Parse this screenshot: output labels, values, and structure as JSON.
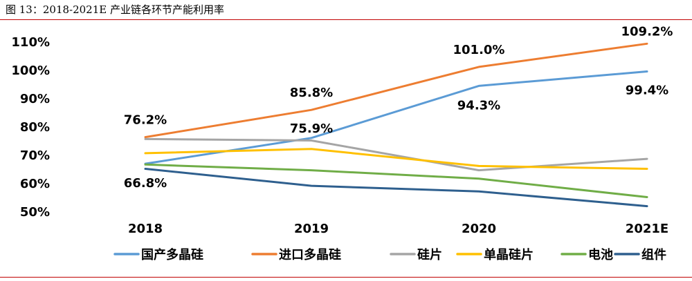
{
  "figure": {
    "title": "图 13：2018-2021E 产业链各环节产能利用率"
  },
  "chart_data": {
    "type": "line",
    "categories": [
      "2018",
      "2019",
      "2020",
      "2021E"
    ],
    "yticks": [
      "50%",
      "60%",
      "70%",
      "80%",
      "90%",
      "100%",
      "110%"
    ],
    "ylim": [
      50,
      110
    ],
    "unit": "%",
    "grid": false,
    "legend_position": "bottom",
    "series": [
      {
        "name": "国产多晶硅",
        "color": "#5b9bd5",
        "values": [
          66.8,
          75.9,
          94.3,
          99.4
        ]
      },
      {
        "name": "进口多晶硅",
        "color": "#ed7d31",
        "values": [
          76.2,
          85.8,
          101.0,
          109.2
        ]
      },
      {
        "name": "硅片",
        "color": "#a5a5a5",
        "values": [
          75.5,
          75.0,
          64.5,
          68.5
        ]
      },
      {
        "name": "单晶硅片",
        "color": "#ffc000",
        "values": [
          70.5,
          72.0,
          66.0,
          65.0
        ]
      },
      {
        "name": "电池",
        "color": "#70ad47",
        "values": [
          66.5,
          64.5,
          61.5,
          55.0
        ]
      },
      {
        "name": "组件",
        "color": "#2e5f8e",
        "values": [
          65.0,
          59.0,
          57.0,
          51.8
        ]
      }
    ],
    "data_labels": [
      {
        "text": "76.2%",
        "series": "进口多晶硅",
        "x": "2018",
        "y": 76.2
      },
      {
        "text": "85.8%",
        "series": "进口多晶硅",
        "x": "2019",
        "y": 85.8
      },
      {
        "text": "101.0%",
        "series": "进口多晶硅",
        "x": "2020",
        "y": 101.0
      },
      {
        "text": "109.2%",
        "series": "进口多晶硅",
        "x": "2021E",
        "y": 109.2
      },
      {
        "text": "66.8%",
        "series": "国产多晶硅",
        "x": "2018",
        "y": 66.8
      },
      {
        "text": "75.9%",
        "series": "国产多晶硅",
        "x": "2019",
        "y": 75.9
      },
      {
        "text": "94.3%",
        "series": "国产多晶硅",
        "x": "2020",
        "y": 94.3
      },
      {
        "text": "99.4%",
        "series": "国产多晶硅",
        "x": "2021E",
        "y": 99.4
      }
    ]
  }
}
